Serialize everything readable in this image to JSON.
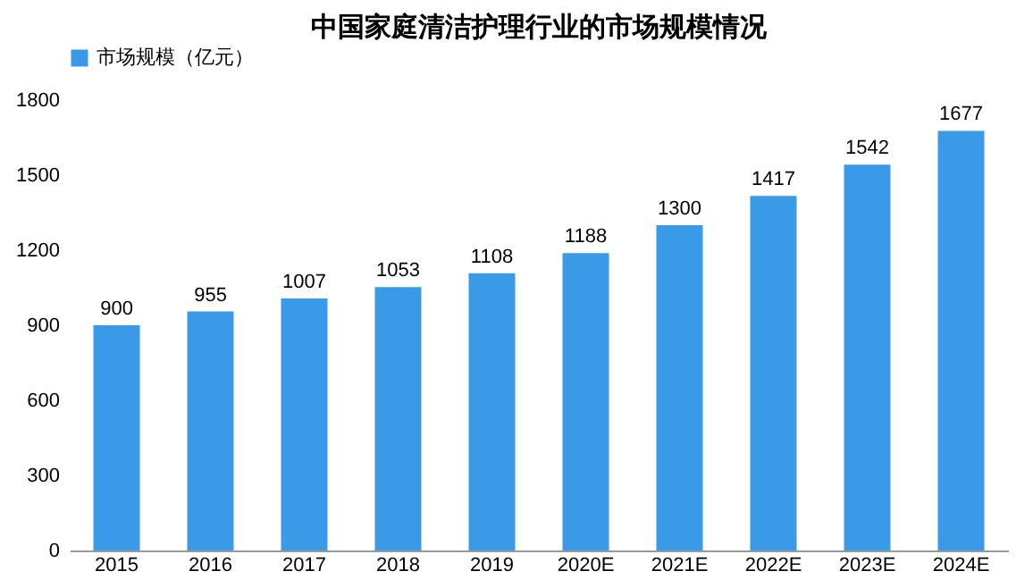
{
  "chart_data": {
    "type": "bar",
    "title": "中国家庭清洁护理行业的市场规模情况",
    "categories": [
      "2015",
      "2016",
      "2017",
      "2018",
      "2019",
      "2020E",
      "2021E",
      "2022E",
      "2023E",
      "2024E"
    ],
    "series": [
      {
        "name": "市场规模（亿元）",
        "color": "#3a9ae8",
        "values": [
          900,
          955,
          1007,
          1053,
          1108,
          1188,
          1300,
          1417,
          1542,
          1677
        ]
      }
    ],
    "ylim": [
      0,
      1800
    ],
    "yticks": [
      0,
      300,
      600,
      900,
      1200,
      1500,
      1800
    ],
    "data_labels": true,
    "legend": "top"
  }
}
